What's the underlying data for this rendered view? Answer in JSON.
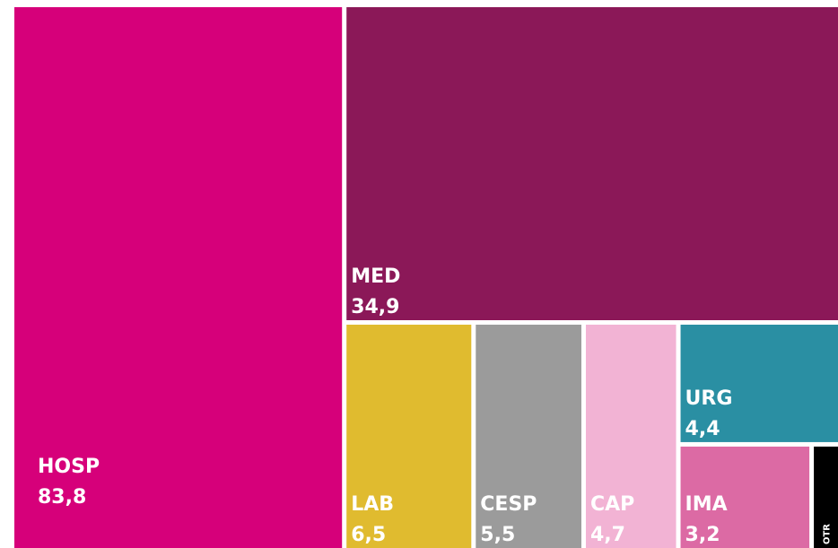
{
  "chart_data": {
    "type": "treemap",
    "categories": [
      "HOSP",
      "MED",
      "LAB",
      "CESP",
      "CAP",
      "URG",
      "IMA",
      "OTR"
    ],
    "values": [
      83.8,
      34.9,
      6.5,
      5.5,
      4.7,
      4.4,
      3.2,
      0.6
    ],
    "value_labels": [
      "83,8",
      "34,9",
      "6,5",
      "5,5",
      "4,7",
      "4,4",
      "3,2",
      null
    ],
    "colors": [
      "#d6007a",
      "#8b1858",
      "#e0bb2f",
      "#9b9b9b",
      "#f2b3d4",
      "#2a8fa3",
      "#dc6aa4",
      "#000000"
    ]
  }
}
